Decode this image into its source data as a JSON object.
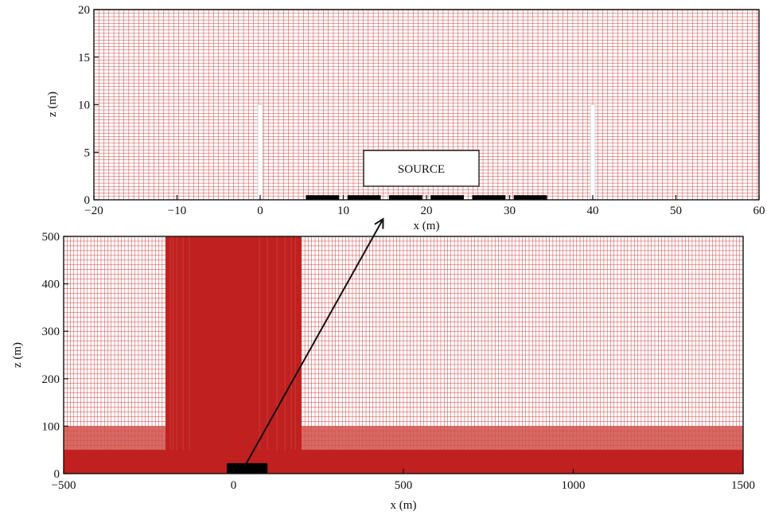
{
  "colors": {
    "grid_line": "#cc2b2b",
    "dense_fill": "#c0201f",
    "mid_fill": "#d0504a",
    "obstacle": "#000000",
    "wall_gap": "#ffffff",
    "frame": "#111111",
    "arrow": "#111111"
  },
  "top_panel": {
    "xlabel": "x (m)",
    "ylabel": "z (m)",
    "xlim": [
      -20,
      60
    ],
    "ylim": [
      0,
      20
    ],
    "xticks": [
      -20,
      -10,
      0,
      10,
      20,
      30,
      40,
      50,
      60
    ],
    "yticks": [
      0,
      5,
      10,
      15,
      20
    ],
    "tick_labels_x": [
      "−20",
      "−10",
      "0",
      "10",
      "20",
      "30",
      "40",
      "50",
      "60"
    ],
    "tick_labels_y": [
      "0",
      "5",
      "10",
      "15",
      "20"
    ],
    "grid_step_x": 0.6,
    "grid_step_z": 0.35,
    "walls": [
      {
        "x": 0,
        "height": 10
      },
      {
        "x": 40,
        "height": 10
      }
    ],
    "source_blocks": [
      [
        5.5,
        9.5
      ],
      [
        10.5,
        14.5
      ],
      [
        15.5,
        19.5
      ],
      [
        20.5,
        24.5
      ],
      [
        25.5,
        29.5
      ],
      [
        30.5,
        34.5
      ]
    ],
    "source_block_height": 0.4,
    "source_label": "SOURCE"
  },
  "bottom_panel": {
    "xlabel": "x (m)",
    "ylabel": "z (m)",
    "xlim": [
      -500,
      1500
    ],
    "ylim": [
      0,
      500
    ],
    "xticks": [
      -500,
      0,
      500,
      1000,
      1500
    ],
    "yticks": [
      0,
      100,
      200,
      300,
      400,
      500
    ],
    "tick_labels_x": [
      "−500",
      "0",
      "500",
      "1000",
      "1500"
    ],
    "tick_labels_y": [
      "0",
      "100",
      "200",
      "300",
      "400",
      "500"
    ],
    "grid_step_x": 10,
    "grid_step_z": 10,
    "dense_column": [
      -200,
      200
    ],
    "dense_layer_top": 50,
    "mid_layer_top": 100,
    "source_block": [
      -20,
      100
    ],
    "source_block_height": 22
  }
}
